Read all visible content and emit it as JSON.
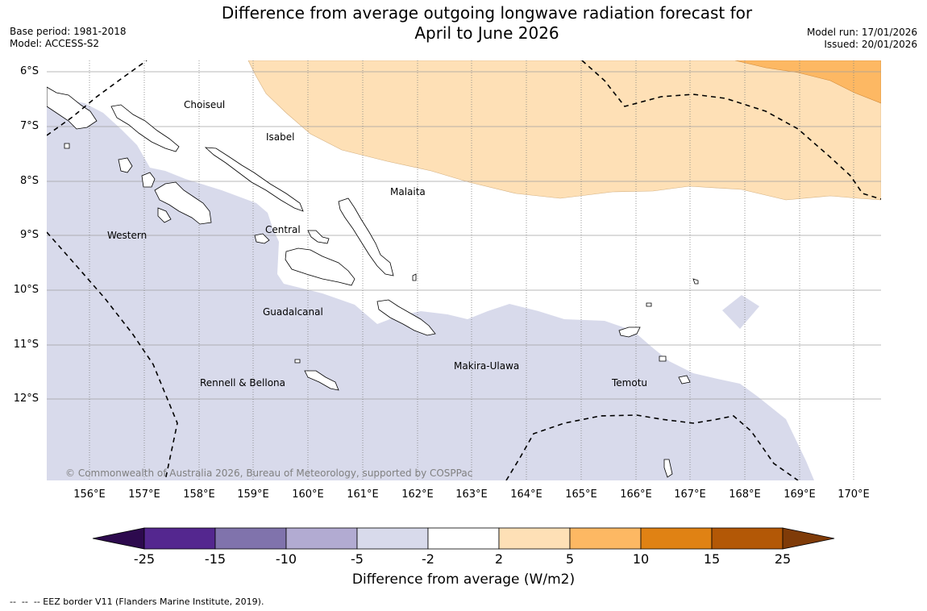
{
  "title_line1": "Difference from average outgoing longwave radiation forecast for",
  "title_line2": "April to June 2026",
  "base_period": "Base period: 1981-2018",
  "model": "Model: ACCESS-S2",
  "model_run": "Model run: 17/01/2026",
  "issued": "Issued: 20/01/2026",
  "copyright": "© Commonwealth of Australia 2026, Bureau of Meteorology, supported by COSPPac",
  "lat_labels": [
    "6°S",
    "7°S",
    "8°S",
    "9°S",
    "10°S",
    "11°S",
    "12°S"
  ],
  "lon_labels": [
    "156°E",
    "157°E",
    "158°E",
    "159°E",
    "160°E",
    "161°E",
    "162°E",
    "163°E",
    "164°E",
    "165°E",
    "166°E",
    "167°E",
    "168°E",
    "169°E",
    "170°E"
  ],
  "regions": {
    "choiseul": "Choiseul",
    "isabel": "Isabel",
    "malaita": "Malaita",
    "western": "Western",
    "central": "Central",
    "guadalcanal": "Guadalcanal",
    "makira": "Makira-Ulawa",
    "rennell": "Rennell & Bellona",
    "temotu": "Temotu"
  },
  "colorbar": {
    "ticks": [
      "-25",
      "-15",
      "-10",
      "-5",
      "-2",
      "2",
      "5",
      "10",
      "15",
      "25"
    ],
    "colors": [
      "#2d0a4e",
      "#54278f",
      "#8073ac",
      "#b2abd2",
      "#d8daeb",
      "#ffffff",
      "#fee0b6",
      "#fdb863",
      "#e08214",
      "#b35806",
      "#7f3b08"
    ],
    "label": "Difference from average (W/m2)"
  },
  "eez_note": "--  --  -- EEZ border V11 (Flanders Marine Institute, 2019)."
}
